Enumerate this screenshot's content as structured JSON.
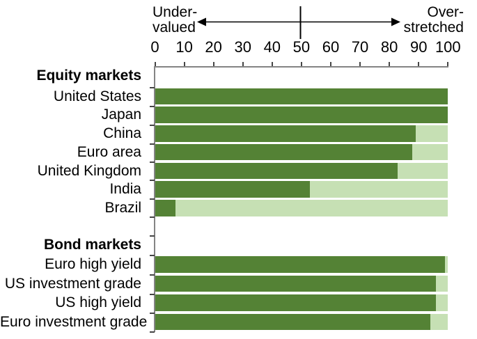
{
  "chart_data": {
    "type": "bar",
    "orientation": "horizontal",
    "endpoint_labels": {
      "left": "Under-\nvalued",
      "right": "Over-\nstretched"
    },
    "x_axis": {
      "min": 0,
      "max": 100,
      "tick_labels": [
        "0",
        "10",
        "20",
        "30",
        "40",
        "50",
        "60",
        "70",
        "80",
        "90",
        "100"
      ],
      "midline_value": 50,
      "grid": false
    },
    "bar_full_extent": 100,
    "sections": [
      {
        "label": "Equity markets",
        "rows": [
          {
            "label": "United States",
            "value": 100
          },
          {
            "label": "Japan",
            "value": 100
          },
          {
            "label": "China",
            "value": 89
          },
          {
            "label": "Euro area",
            "value": 88
          },
          {
            "label": "United Kingdom",
            "value": 83
          },
          {
            "label": "India",
            "value": 53
          },
          {
            "label": "Brazil",
            "value": 7
          }
        ]
      },
      {
        "label": "Bond markets",
        "rows": [
          {
            "label": "Euro high yield",
            "value": 99
          },
          {
            "label": "US investment grade",
            "value": 96
          },
          {
            "label": "US high yield",
            "value": 96
          },
          {
            "label": "Euro investment grade",
            "value": 94
          }
        ]
      }
    ],
    "colors": {
      "bar_filled": "#548235",
      "bar_remainder": "#c6e0b4"
    }
  }
}
